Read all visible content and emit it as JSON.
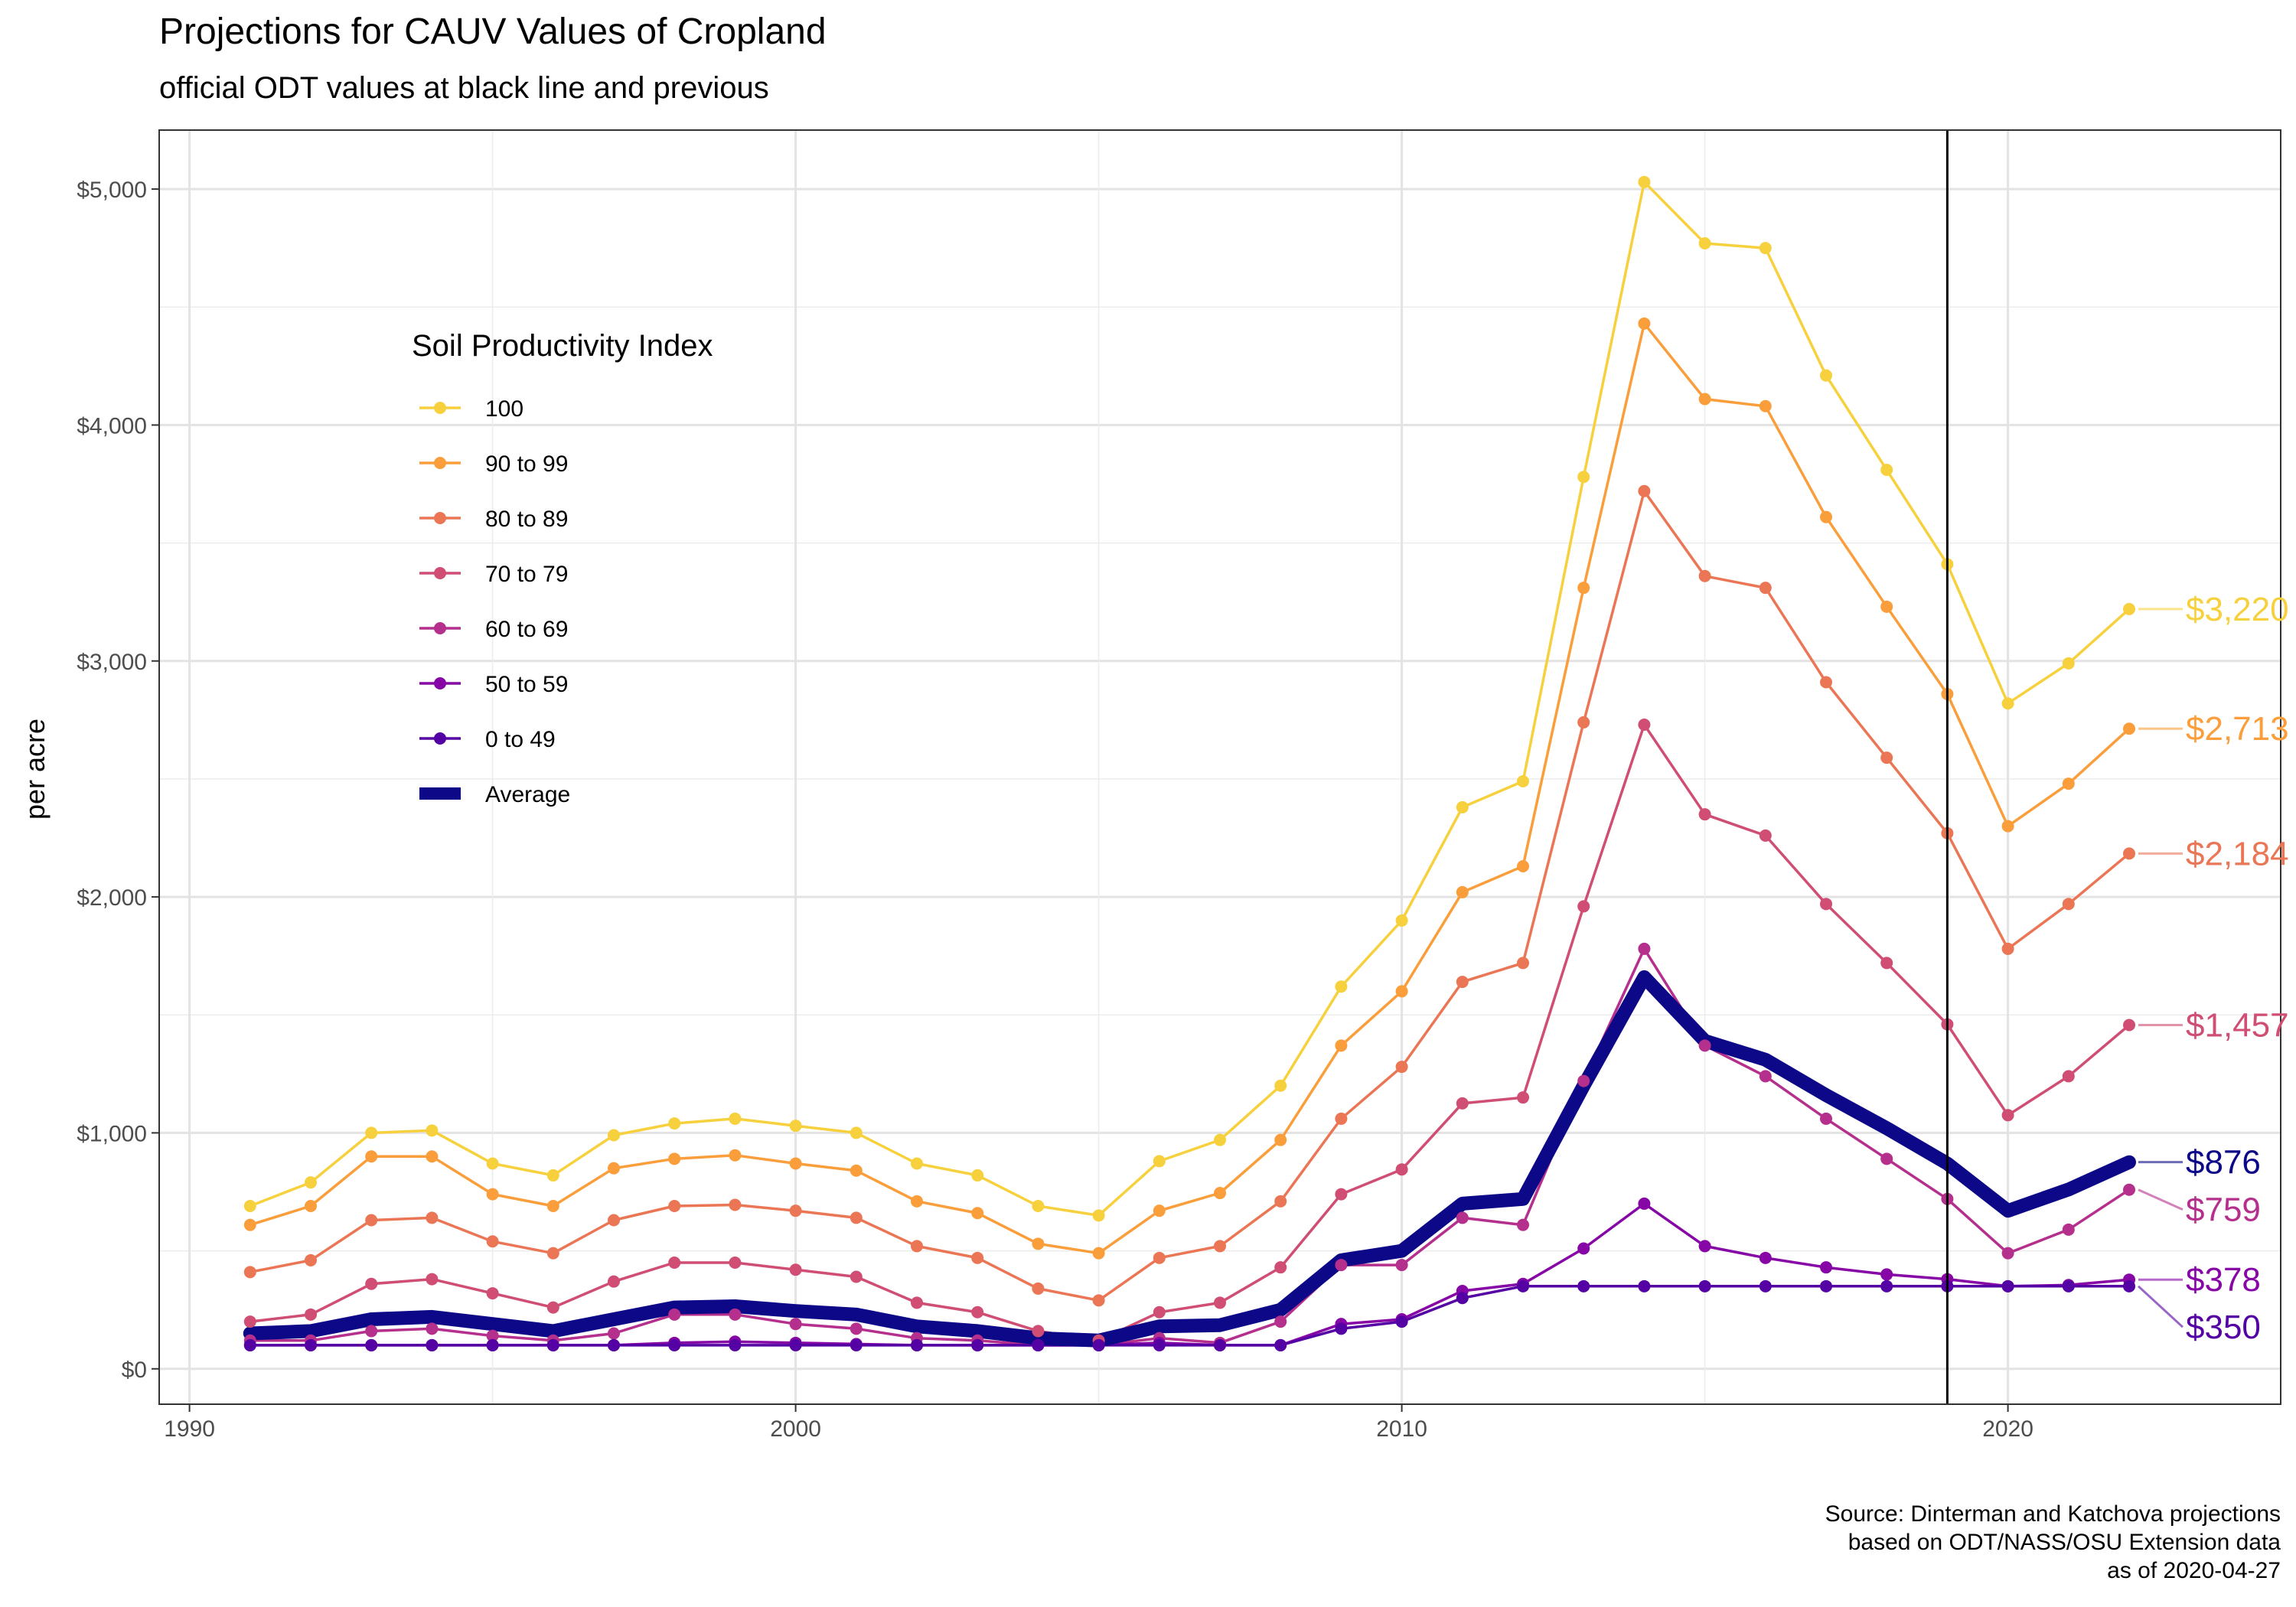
{
  "chart_data": {
    "type": "line",
    "title": "Projections for CAUV Values of Cropland",
    "subtitle": "official ODT values at black line and previous",
    "xlabel": "",
    "ylabel": "per acre",
    "xlim": [
      1989.5,
      2024.5
    ],
    "ylim": [
      -150,
      5250
    ],
    "x_ticks": [
      1990,
      2000,
      2010,
      2020
    ],
    "x_tick_labels": [
      "1990",
      "2000",
      "2010",
      "2020"
    ],
    "y_ticks": [
      0,
      1000,
      2000,
      3000,
      4000,
      5000
    ],
    "y_tick_labels": [
      "$0",
      "$1,000",
      "$2,000",
      "$3,000",
      "$4,000",
      "$5,000"
    ],
    "vline_x": 2019,
    "legend_title": "Soil Productivity Index",
    "legend_position": "top-left inside plot",
    "x": [
      1991,
      1992,
      1993,
      1994,
      1995,
      1996,
      1997,
      1998,
      1999,
      2000,
      2001,
      2002,
      2003,
      2004,
      2005,
      2006,
      2007,
      2008,
      2009,
      2010,
      2011,
      2012,
      2013,
      2014,
      2015,
      2016,
      2017,
      2018,
      2019,
      2020,
      2021,
      2022
    ],
    "series": [
      {
        "name": "100",
        "color": "#F7D13D",
        "width": "thin",
        "values": [
          690,
          790,
          1000,
          1010,
          870,
          820,
          990,
          1040,
          1060,
          1030,
          1000,
          870,
          820,
          690,
          650,
          880,
          970,
          1200,
          1620,
          1900,
          2380,
          2490,
          3780,
          5030,
          4770,
          4750,
          4210,
          3810,
          3410,
          2820,
          2990,
          3220
        ],
        "end_label": "$3,220",
        "end_value": 3220
      },
      {
        "name": "90 to 99",
        "color": "#FA9E3B",
        "width": "thin",
        "values": [
          610,
          690,
          900,
          900,
          740,
          690,
          850,
          890,
          905,
          870,
          840,
          710,
          660,
          530,
          490,
          670,
          745,
          970,
          1370,
          1600,
          2020,
          2130,
          3310,
          4430,
          4110,
          4080,
          3610,
          3230,
          2860,
          2300,
          2480,
          2713
        ],
        "end_label": "$2,713",
        "end_value": 2713
      },
      {
        "name": "80 to 89",
        "color": "#EB7655",
        "width": "thin",
        "values": [
          410,
          460,
          630,
          640,
          540,
          490,
          630,
          690,
          695,
          670,
          640,
          520,
          470,
          340,
          290,
          470,
          520,
          710,
          1060,
          1280,
          1640,
          1720,
          2740,
          3720,
          3360,
          3310,
          2910,
          2590,
          2270,
          1780,
          1970,
          2184
        ],
        "end_label": "$2,184",
        "end_value": 2184
      },
      {
        "name": "70 to 79",
        "color": "#D04D73",
        "width": "thin",
        "values": [
          200,
          230,
          360,
          380,
          320,
          260,
          370,
          450,
          450,
          420,
          390,
          280,
          240,
          160,
          120,
          240,
          280,
          430,
          740,
          845,
          1125,
          1150,
          1960,
          2730,
          2350,
          2260,
          1970,
          1720,
          1460,
          1075,
          1240,
          1457
        ],
        "end_label": "$1,457",
        "end_value": 1457
      },
      {
        "name": "60 to 69",
        "color": "#B52F8C",
        "width": "thin",
        "values": [
          120,
          120,
          160,
          170,
          140,
          120,
          150,
          230,
          230,
          190,
          170,
          130,
          120,
          100,
          100,
          130,
          110,
          200,
          440,
          440,
          640,
          610,
          1220,
          1780,
          1370,
          1240,
          1060,
          890,
          720,
          490,
          590,
          759
        ],
        "end_label": "$759",
        "end_value": 759
      },
      {
        "name": "50 to 59",
        "color": "#8706A6",
        "width": "thin",
        "values": [
          100,
          100,
          100,
          100,
          100,
          100,
          100,
          110,
          115,
          110,
          105,
          100,
          100,
          100,
          100,
          110,
          100,
          100,
          190,
          210,
          330,
          360,
          510,
          700,
          520,
          470,
          430,
          400,
          380,
          350,
          355,
          378
        ],
        "end_label": "$378",
        "end_value": 378
      },
      {
        "name": "0 to 49",
        "color": "#5402A3",
        "width": "thin",
        "values": [
          100,
          100,
          100,
          100,
          100,
          100,
          100,
          100,
          100,
          100,
          100,
          100,
          100,
          100,
          100,
          100,
          100,
          100,
          170,
          200,
          300,
          350,
          350,
          350,
          350,
          350,
          350,
          350,
          350,
          350,
          350,
          350
        ],
        "end_label": "$350",
        "end_value": 350
      },
      {
        "name": "Average",
        "color": "#0D0887",
        "width": "thick",
        "values": [
          150,
          160,
          210,
          220,
          190,
          160,
          210,
          260,
          265,
          245,
          230,
          180,
          160,
          130,
          120,
          180,
          185,
          250,
          460,
          500,
          700,
          720,
          1200,
          1660,
          1390,
          1310,
          1160,
          1020,
          870,
          670,
          760,
          876
        ],
        "end_label": "$876",
        "end_value": 876
      }
    ],
    "caption": [
      "Source: Dinterman and Katchova projections",
      "based on ODT/NASS/OSU Extension data",
      "as of 2020-04-27"
    ]
  }
}
